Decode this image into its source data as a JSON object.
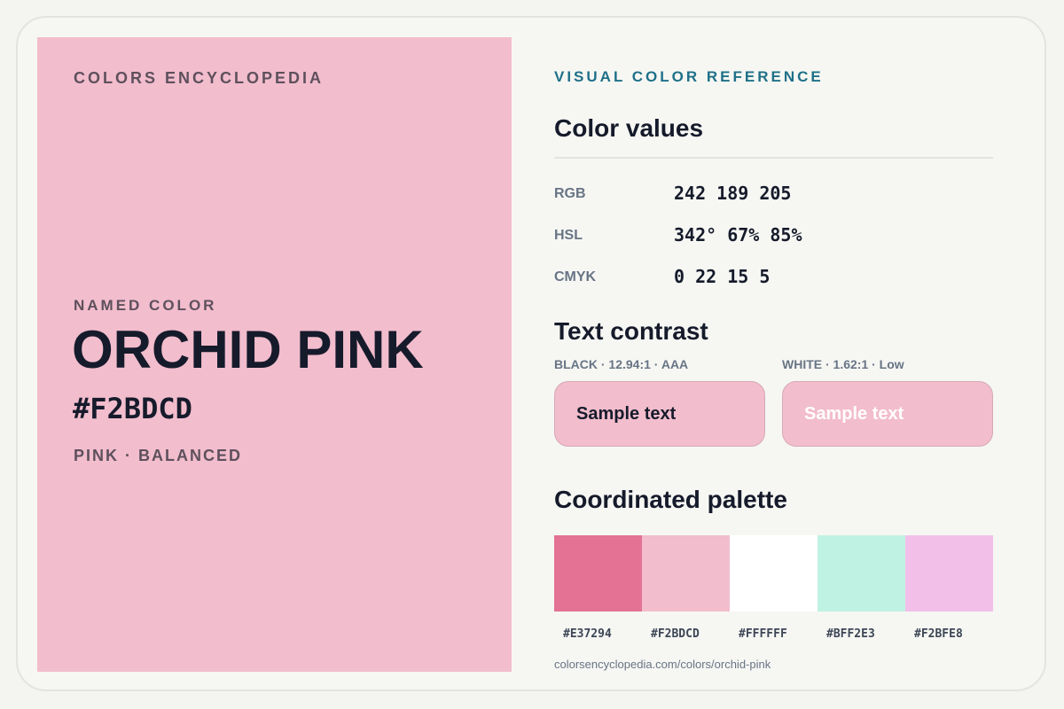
{
  "hero": {
    "brand": "COLORS ENCYCLOPEDIA",
    "named_label": "NAMED COLOR",
    "name": "ORCHID PINK",
    "hex": "#F2BDCD",
    "family": "PINK · BALANCED",
    "background": "#F2BDCD"
  },
  "details": {
    "kicker": "VISUAL COLOR REFERENCE",
    "values_heading": "Color values",
    "values": [
      {
        "label": "RGB",
        "value": "242 189 205"
      },
      {
        "label": "HSL",
        "value": "342° 67% 85%"
      },
      {
        "label": "CMYK",
        "value": "0 22 15 5"
      }
    ],
    "contrast_heading": "Text contrast",
    "contrast": [
      {
        "caption": "BLACK · 12.94:1 · AAA",
        "sample": "Sample text",
        "text_color": "#161B2B"
      },
      {
        "caption": "WHITE · 1.62:1 · Low",
        "sample": "Sample text",
        "text_color": "#FFFFFF"
      }
    ],
    "palette_heading": "Coordinated palette",
    "palette": [
      {
        "hex": "#E37294"
      },
      {
        "hex": "#F2BDCD"
      },
      {
        "hex": "#FFFFFF"
      },
      {
        "hex": "#BFF2E3"
      },
      {
        "hex": "#F2BFE8"
      }
    ],
    "url": "colorsencyclopedia.com/colors/orchid-pink"
  }
}
